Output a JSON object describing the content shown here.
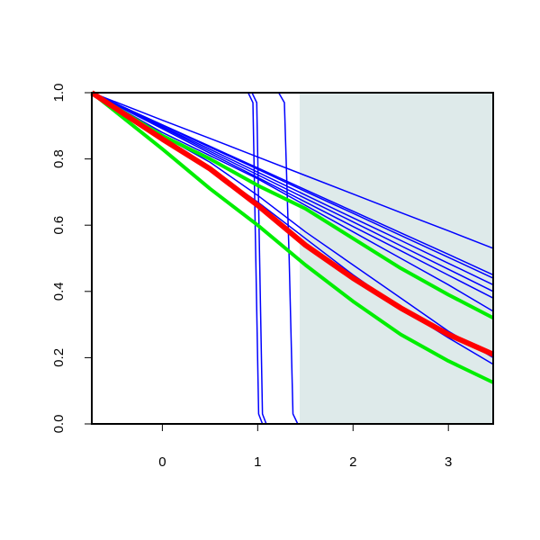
{
  "chart_data": {
    "type": "line",
    "xlim": [
      -0.74,
      3.47
    ],
    "ylim": [
      0,
      1
    ],
    "xticks": [
      0,
      1,
      2,
      3
    ],
    "yticks": [
      {
        "value": 0,
        "label": "0.0"
      },
      0.2,
      0.4,
      0.6,
      0.8,
      {
        "value": 1,
        "label": "1.0"
      }
    ],
    "shaded_region": {
      "xmin": 1.44,
      "xmax": 3.47,
      "color": "#deeaea"
    },
    "series": [
      {
        "color": "#0000ff",
        "width": 1.5,
        "x": [
          -0.74,
          0,
          0.5,
          1,
          1.5,
          2,
          2.5,
          3,
          3.47
        ],
        "values": [
          1,
          0.917,
          0.862,
          0.806,
          0.75,
          0.694,
          0.638,
          0.583,
          0.53
        ]
      },
      {
        "color": "#0000ff",
        "width": 1.5,
        "x": [
          -0.74,
          0,
          0.5,
          1,
          1.5,
          2,
          2.5,
          3,
          3.47
        ],
        "values": [
          1,
          0.903,
          0.838,
          0.773,
          0.707,
          0.642,
          0.577,
          0.512,
          0.45
        ]
      },
      {
        "color": "#0000ff",
        "width": 1.5,
        "x": [
          -0.74,
          0,
          0.5,
          1,
          1.5,
          2,
          2.5,
          3,
          3.47
        ],
        "values": [
          1,
          0.902,
          0.835,
          0.769,
          0.702,
          0.636,
          0.569,
          0.503,
          0.44
        ]
      },
      {
        "color": "#0000ff",
        "width": 1.5,
        "x": [
          -0.74,
          0,
          0.5,
          1,
          1.5,
          2,
          2.5,
          3,
          3.47
        ],
        "values": [
          1,
          0.898,
          0.829,
          0.76,
          0.691,
          0.622,
          0.554,
          0.485,
          0.42
        ]
      },
      {
        "color": "#0000ff",
        "width": 1.5,
        "x": [
          -0.74,
          0,
          0.5,
          1,
          1.5,
          2,
          2.5,
          3,
          3.47
        ],
        "values": [
          1,
          0.895,
          0.823,
          0.752,
          0.681,
          0.61,
          0.538,
          0.467,
          0.4
        ]
      },
      {
        "color": "#0000ff",
        "width": 1.5,
        "x": [
          -0.74,
          0,
          0.5,
          1,
          1.5,
          2,
          2.5,
          3,
          3.47
        ],
        "values": [
          1,
          0.891,
          0.817,
          0.744,
          0.67,
          0.596,
          0.523,
          0.449,
          0.38
        ]
      },
      {
        "color": "#0000ff",
        "width": 1.5,
        "x": [
          -0.74,
          0,
          0.5,
          1,
          1.5,
          2,
          2.5,
          3,
          3.47
        ],
        "values": [
          1,
          0.88,
          0.81,
          0.74,
          0.66,
          0.58,
          0.5,
          0.42,
          0.34
        ]
      },
      {
        "color": "#0000ff",
        "width": 1.5,
        "x": [
          -0.74,
          0,
          0.5,
          1,
          1.5,
          2,
          2.5,
          3,
          3.47
        ],
        "values": [
          1,
          0.87,
          0.79,
          0.69,
          0.58,
          0.48,
          0.38,
          0.28,
          0.2
        ]
      },
      {
        "color": "#0000ff",
        "width": 1.5,
        "x": [
          -0.74,
          0,
          0.5,
          1,
          1.5,
          2,
          2.5,
          3,
          3.47
        ],
        "values": [
          1,
          0.86,
          0.77,
          0.67,
          0.56,
          0.45,
          0.35,
          0.26,
          0.18
        ]
      },
      {
        "color": "#0000ff",
        "width": 1.5,
        "x": [
          -0.74,
          0.9,
          0.95,
          0.98,
          1.01,
          1.05,
          3.47
        ],
        "values": [
          1,
          1,
          0.97,
          0.5,
          0.03,
          0,
          0
        ]
      },
      {
        "color": "#0000ff",
        "width": 1.5,
        "x": [
          -0.74,
          0.94,
          0.99,
          1.02,
          1.05,
          1.09,
          3.47
        ],
        "values": [
          1,
          1,
          0.97,
          0.5,
          0.03,
          0,
          0
        ]
      },
      {
        "color": "#0000ff",
        "width": 1.5,
        "x": [
          -0.74,
          1.22,
          1.28,
          1.33,
          1.37,
          1.42,
          3.47
        ],
        "values": [
          1,
          1,
          0.97,
          0.5,
          0.03,
          0,
          0
        ]
      },
      {
        "color": "#00ee00",
        "width": 4,
        "x": [
          -0.74,
          0,
          0.5,
          1,
          1.5,
          2,
          2.5,
          3,
          3.47
        ],
        "values": [
          1,
          0.87,
          0.8,
          0.72,
          0.65,
          0.56,
          0.47,
          0.39,
          0.32
        ]
      },
      {
        "color": "#00ee00",
        "width": 4,
        "x": [
          -0.74,
          0,
          0.5,
          1,
          1.5,
          2,
          2.5,
          3,
          3.47
        ],
        "values": [
          1,
          0.83,
          0.71,
          0.6,
          0.48,
          0.37,
          0.27,
          0.19,
          0.125
        ]
      },
      {
        "color": "#ff0000",
        "width": 6,
        "x": [
          -0.74,
          0,
          0.5,
          1,
          1.5,
          2,
          2.5,
          3,
          3.47
        ],
        "values": [
          1,
          0.86,
          0.77,
          0.66,
          0.54,
          0.44,
          0.35,
          0.27,
          0.21
        ]
      }
    ]
  }
}
